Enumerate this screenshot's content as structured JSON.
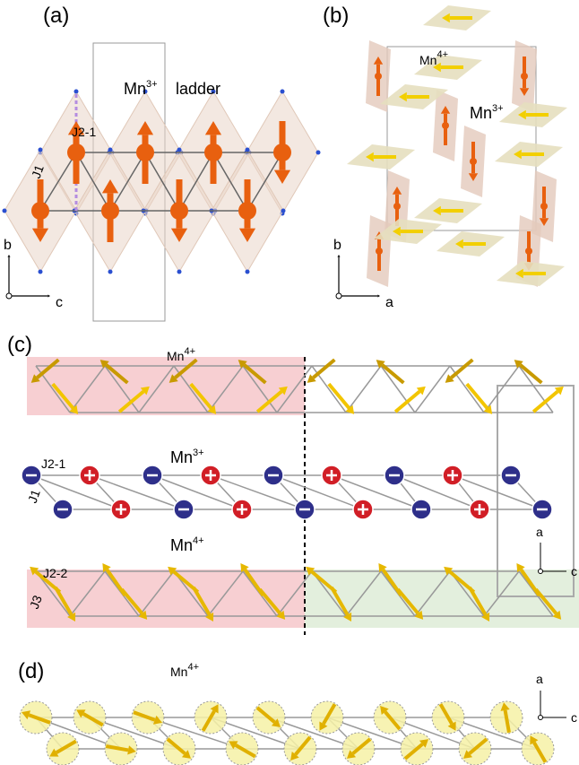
{
  "panel_a": {
    "label": "(a)",
    "ladder": {
      "base": "Mn",
      "sup": "3+"
    },
    "ladder_word": "ladder",
    "j21": "J2-1",
    "j1": "J1",
    "axes": {
      "vertical": "b",
      "horizontal": "c"
    }
  },
  "panel_b": {
    "label": "(b)",
    "mn4": {
      "base": "Mn",
      "sup": "4+"
    },
    "mn3": {
      "base": "Mn",
      "sup": "3+"
    },
    "axes": {
      "vertical": "b",
      "horizontal": "a"
    }
  },
  "panel_c": {
    "label": "(c)",
    "mn4_top": {
      "base": "Mn",
      "sup": "4+"
    },
    "mn3": {
      "base": "Mn",
      "sup": "3+"
    },
    "mn4_bottom": {
      "base": "Mn",
      "sup": "4+"
    },
    "j21": "J2-1",
    "j1": "J1",
    "j22": "J2-2",
    "j3": "J3",
    "axes": {
      "vertical": "a",
      "horizontal": "c"
    }
  },
  "panel_d": {
    "label": "(d)",
    "mn4": {
      "base": "Mn",
      "sup": "4+"
    },
    "axes": {
      "vertical": "a",
      "horizontal": "c"
    }
  }
}
